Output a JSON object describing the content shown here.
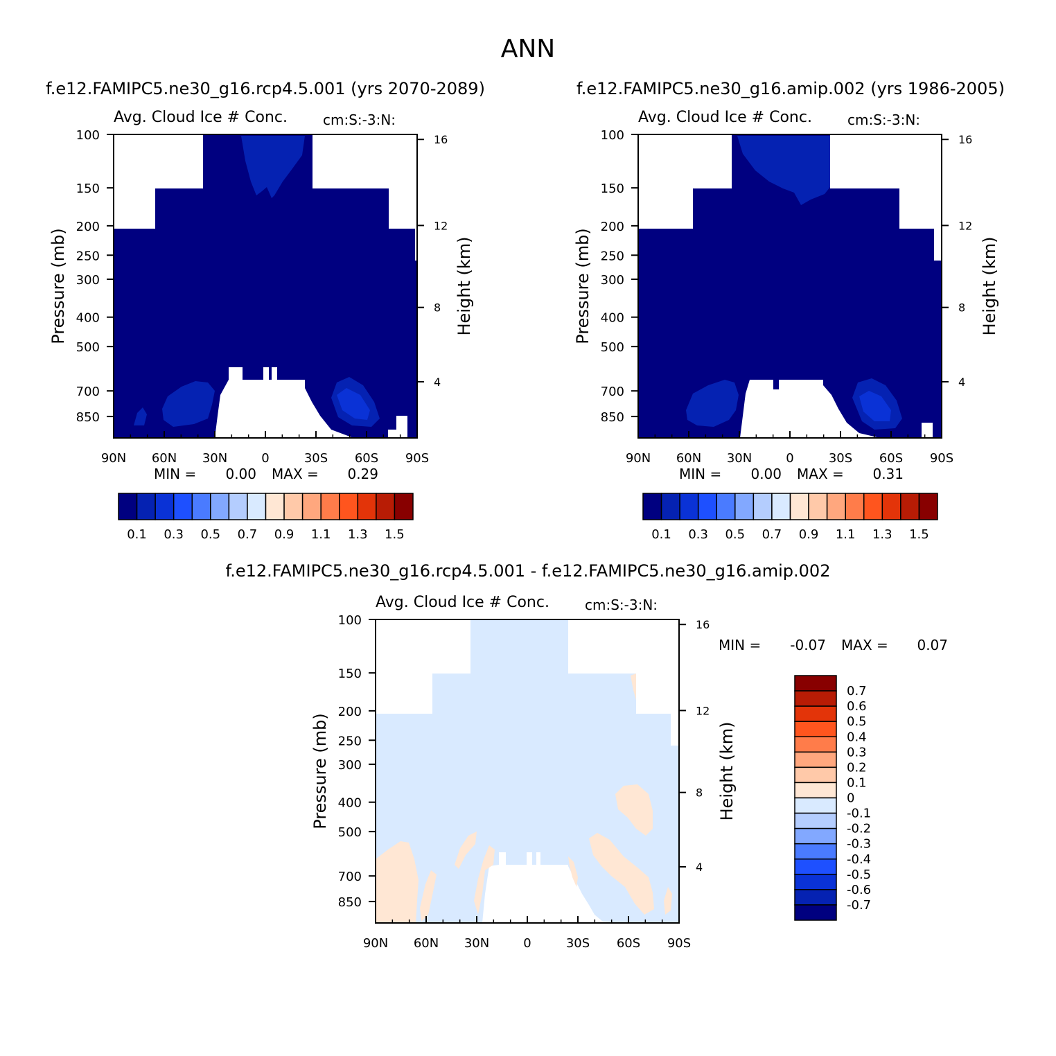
{
  "figure": {
    "title": "ANN"
  },
  "colors": {
    "seq": [
      "#000080",
      "#0522b2",
      "#0a32d6",
      "#1e50ff",
      "#4a7bff",
      "#82a8ff",
      "#b4cdfe",
      "#d9eaff",
      "#ffe7d4",
      "#ffc9a9",
      "#ffa77e",
      "#ff7c4a",
      "#ff551e",
      "#e33409",
      "#b81c05",
      "#880000"
    ],
    "bg": "#ffffff"
  },
  "chart_data": [
    {
      "type": "heatmap",
      "panel": "rcp",
      "header": "f.e12.FAMIPC5.ne30_g16.rcp4.5.001 (yrs 2070-2089)",
      "title": "Avg. Cloud Ice # Conc.",
      "units": "cm:S:-3:N:",
      "xlabel": "",
      "ylabel": "Pressure (mb)",
      "y2label": "Height (km)",
      "x_ticks": [
        "90N",
        "60N",
        "30N",
        "0",
        "30S",
        "60S",
        "90S"
      ],
      "y_ticks": [
        "100",
        "150",
        "200",
        "250",
        "300",
        "400",
        "500",
        "700",
        "850"
      ],
      "y2_ticks": [
        "16",
        "12",
        "8",
        "4"
      ],
      "stats": {
        "min_label": "MIN =",
        "min": "0.00",
        "max_label": "MAX =",
        "max": "0.29"
      },
      "colorbar_labels": [
        "0.1",
        "0.3",
        "0.5",
        "0.7",
        "0.9",
        "1.1",
        "1.3",
        "1.5"
      ]
    },
    {
      "type": "heatmap",
      "panel": "amip",
      "header": "f.e12.FAMIPC5.ne30_g16.amip.002 (yrs 1986-2005)",
      "title": "Avg. Cloud Ice # Conc.",
      "units": "cm:S:-3:N:",
      "xlabel": "",
      "ylabel": "Pressure (mb)",
      "y2label": "Height (km)",
      "x_ticks": [
        "90N",
        "60N",
        "30N",
        "0",
        "30S",
        "60S",
        "90S"
      ],
      "y_ticks": [
        "100",
        "150",
        "200",
        "250",
        "300",
        "400",
        "500",
        "700",
        "850"
      ],
      "y2_ticks": [
        "16",
        "12",
        "8",
        "4"
      ],
      "stats": {
        "min_label": "MIN =",
        "min": "0.00",
        "max_label": "MAX =",
        "max": "0.31"
      },
      "colorbar_labels": [
        "0.1",
        "0.3",
        "0.5",
        "0.7",
        "0.9",
        "1.1",
        "1.3",
        "1.5"
      ]
    },
    {
      "type": "heatmap",
      "panel": "diff",
      "header": "f.e12.FAMIPC5.ne30_g16.rcp4.5.001 - f.e12.FAMIPC5.ne30_g16.amip.002",
      "title": "Avg. Cloud Ice # Conc.",
      "units": "cm:S:-3:N:",
      "xlabel": "",
      "ylabel": "Pressure (mb)",
      "y2label": "Height (km)",
      "x_ticks": [
        "90N",
        "60N",
        "30N",
        "0",
        "30S",
        "60S",
        "90S"
      ],
      "y_ticks": [
        "100",
        "150",
        "200",
        "250",
        "300",
        "400",
        "500",
        "700",
        "850"
      ],
      "y2_ticks": [
        "16",
        "12",
        "8",
        "4"
      ],
      "stats": {
        "min_label": "MIN =",
        "min": "-0.07",
        "max_label": "MAX =",
        "max": "0.07"
      },
      "colorbar_labels": [
        "0.7",
        "0.6",
        "0.5",
        "0.4",
        "0.3",
        "0.2",
        "0.1",
        "0",
        "-0.1",
        "-0.2",
        "-0.3",
        "-0.4",
        "-0.5",
        "-0.6",
        "-0.7"
      ]
    }
  ]
}
